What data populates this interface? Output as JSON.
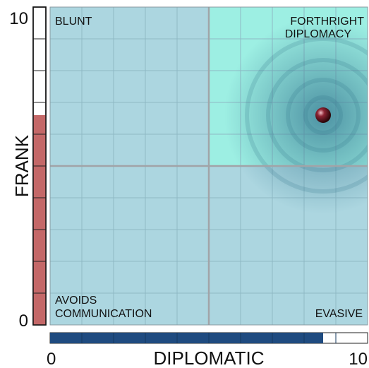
{
  "chart_data": {
    "type": "scatter",
    "xlabel": "DIPLOMATIC",
    "ylabel": "FRANK",
    "xlim": [
      0,
      10
    ],
    "ylim": [
      0,
      10
    ],
    "x_ticks": [
      "0",
      "10"
    ],
    "y_ticks": [
      "0",
      "10"
    ],
    "grid": true,
    "quadrants": {
      "top_left": "BLUNT",
      "top_right": [
        "FORTHRIGHT",
        "DIPLOMACY"
      ],
      "bottom_left": [
        "AVOIDS",
        "COMMUNICATION"
      ],
      "bottom_right": "EVASIVE"
    },
    "highlighted_quadrant": "top_right",
    "point": {
      "x": 8.6,
      "y": 6.6
    },
    "x_bar_value": 8.6,
    "y_bar_value": 6.6,
    "bar_segments": 10
  },
  "colors": {
    "plot_bg": "#acd6e0",
    "highlight": "#9defe3",
    "grid": "#8fb9c5",
    "midline": "#a1a4a8",
    "x_bar": "#1f4b80",
    "y_bar": "#c46868",
    "glow": "#3f8298",
    "point": "#6b1420"
  }
}
